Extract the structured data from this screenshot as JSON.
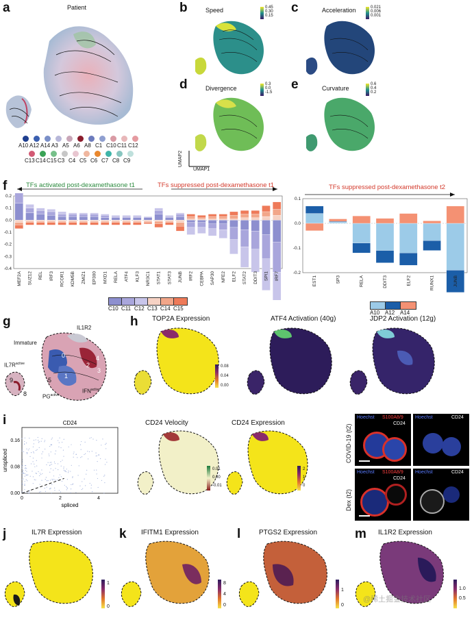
{
  "panels": {
    "a": {
      "label": "a",
      "title": "Patient"
    },
    "b": {
      "label": "b",
      "title": "Speed",
      "cbar": [
        "0.45",
        "0.30",
        "0.15"
      ]
    },
    "c": {
      "label": "c",
      "title": "Acceleration",
      "cbar": [
        "0.021",
        "0.006",
        "0.001"
      ]
    },
    "d": {
      "label": "d",
      "title": "Divergence",
      "cbar": [
        "0.3",
        "0.0",
        "-1.5"
      ]
    },
    "e": {
      "label": "e",
      "title": "Curvature",
      "cbar": [
        "0.6",
        "0.4",
        "0.2"
      ]
    },
    "f": {
      "label": "f"
    },
    "g": {
      "label": "g"
    },
    "h": {
      "label": "h"
    },
    "i": {
      "label": "i"
    },
    "j": {
      "label": "j",
      "title": "IL7R Expression",
      "cbar": [
        "1",
        "0"
      ]
    },
    "k": {
      "label": "k",
      "title": "IFITM1 Expression",
      "cbar": [
        "8",
        "4",
        "0"
      ]
    },
    "l": {
      "label": "l",
      "title": "PTGS2 Expression",
      "cbar": [
        "1",
        "0"
      ]
    },
    "m": {
      "label": "m",
      "title": "IL1R2 Expression",
      "cbar": [
        "1.0",
        "0.5"
      ]
    }
  },
  "umap_axes": {
    "y": "UMAP2",
    "x": "UMAP1"
  },
  "patient_legend": {
    "row1": [
      {
        "name": "A10",
        "color": "#1f3f8f"
      },
      {
        "name": "A12",
        "color": "#3b5fb0"
      },
      {
        "name": "A14",
        "color": "#7a8fc8"
      },
      {
        "name": "A3",
        "color": "#b7b7d9"
      },
      {
        "name": "A5",
        "color": "#c9a6b8"
      },
      {
        "name": "A6",
        "color": "#8b1c2c"
      },
      {
        "name": "A8",
        "color": "#6c7bbd"
      },
      {
        "name": "C1",
        "color": "#8f9fd0"
      },
      {
        "name": "C10",
        "color": "#d99aa4"
      },
      {
        "name": "C11",
        "color": "#e8b7b9"
      },
      {
        "name": "C12",
        "color": "#e59aa0"
      }
    ],
    "row2": [
      {
        "name": "C13",
        "color": "#d25a74"
      },
      {
        "name": "C14",
        "color": "#3aa356"
      },
      {
        "name": "C15",
        "color": "#77c08a"
      },
      {
        "name": "C3",
        "color": "#c7c7c7"
      },
      {
        "name": "C4",
        "color": "#e8c6d0"
      },
      {
        "name": "C5",
        "color": "#f0b79f"
      },
      {
        "name": "C6",
        "color": "#e9882e"
      },
      {
        "name": "C7",
        "color": "#40b5a8"
      },
      {
        "name": "C8",
        "color": "#88c6c0"
      },
      {
        "name": "C9",
        "color": "#bfe0dc"
      }
    ]
  },
  "f_left": {
    "activated_label": "TFs activated post-dexamethasone t1",
    "suppressed_label": "TFs suppressed post-dexamethasone t1",
    "legend": [
      {
        "name": "C10",
        "color": "#8d8fcf"
      },
      {
        "name": "C11",
        "color": "#a9a6dc"
      },
      {
        "name": "C12",
        "color": "#c8c5ea"
      },
      {
        "name": "C13",
        "color": "#f6d2c4"
      },
      {
        "name": "C14",
        "color": "#f2a689"
      },
      {
        "name": "C15",
        "color": "#ee7a59"
      }
    ]
  },
  "f_right": {
    "title": "TFs suppressed post-dexamethasone t2",
    "legend": [
      {
        "name": "A10",
        "color": "#9ccbe8"
      },
      {
        "name": "A12",
        "color": "#1b5ea8"
      },
      {
        "name": "A14",
        "color": "#f49173"
      }
    ]
  },
  "chart_data": [
    {
      "type": "bar",
      "title": "TFs activated / suppressed post-dexamethasone t1",
      "categories": [
        "MEF2A",
        "SUZ12",
        "REL",
        "IRF3",
        "RCOR1",
        "KDM5B",
        "ZMIZ1",
        "EP300",
        "MXD1",
        "RELA",
        "ATF4",
        "KLF3",
        "NR3C1",
        "STAT1",
        "STAT3",
        "JUNB",
        "IRF2",
        "CEBPA",
        "SAP30",
        "NFE2",
        "ELF2",
        "STAT2",
        "DDIT3",
        "SPI1",
        "IRF7"
      ],
      "ylim": [
        -0.4,
        0.2
      ],
      "yticks": [
        "0.2",
        "0.1",
        "0.0",
        "-0.1",
        "-0.2",
        "-0.3",
        "-0.4"
      ],
      "series": [
        {
          "name": "C10",
          "values": [
            0.14,
            0.06,
            0.05,
            0.04,
            0.03,
            0.03,
            0.03,
            0.03,
            0.02,
            0.02,
            0.02,
            0.02,
            0.02,
            0.05,
            0.02,
            0.03,
            -0.02,
            -0.02,
            -0.03,
            -0.03,
            -0.06,
            -0.08,
            -0.09,
            -0.12,
            -0.18
          ]
        },
        {
          "name": "C11",
          "values": [
            0.1,
            0.04,
            0.03,
            0.03,
            0.02,
            0.02,
            0.02,
            0.02,
            0.02,
            0.01,
            0.01,
            0.01,
            0.01,
            0.03,
            0.01,
            0.02,
            -0.04,
            -0.04,
            -0.04,
            -0.05,
            -0.1,
            -0.14,
            -0.15,
            -0.2,
            -0.25
          ]
        },
        {
          "name": "C12",
          "values": [
            0.05,
            0.03,
            0.02,
            0.02,
            0.02,
            0.01,
            0.01,
            0.01,
            0.01,
            0.01,
            0.01,
            0.01,
            0.0,
            0.02,
            0.01,
            0.01,
            -0.06,
            -0.05,
            -0.06,
            -0.07,
            -0.12,
            -0.17,
            -0.19,
            -0.26,
            -0.3
          ]
        },
        {
          "name": "C13",
          "values": [
            -0.02,
            -0.01,
            -0.01,
            -0.01,
            -0.01,
            -0.01,
            -0.01,
            -0.01,
            -0.01,
            -0.01,
            -0.01,
            -0.01,
            -0.01,
            -0.01,
            -0.01,
            -0.02,
            0.01,
            0.01,
            0.01,
            0.01,
            0.01,
            0.02,
            0.02,
            0.03,
            0.04
          ]
        },
        {
          "name": "C14",
          "values": [
            -0.02,
            -0.01,
            -0.01,
            -0.01,
            -0.01,
            -0.01,
            -0.01,
            -0.01,
            -0.01,
            -0.01,
            -0.01,
            -0.01,
            -0.01,
            -0.02,
            -0.01,
            -0.03,
            0.02,
            0.01,
            0.02,
            0.02,
            0.03,
            0.03,
            0.03,
            0.04,
            0.05
          ]
        },
        {
          "name": "C15",
          "values": [
            -0.03,
            -0.02,
            -0.02,
            -0.02,
            -0.02,
            -0.02,
            -0.02,
            -0.02,
            -0.02,
            -0.02,
            -0.02,
            -0.02,
            -0.01,
            -0.03,
            -0.02,
            -0.04,
            0.02,
            0.02,
            0.02,
            0.02,
            0.03,
            0.03,
            0.03,
            0.05,
            0.06
          ]
        }
      ]
    },
    {
      "type": "bar",
      "title": "TFs suppressed post-dexamethasone t2",
      "categories": [
        "EST1",
        "SP3",
        "RELA",
        "DDIT3",
        "ELF2",
        "RUNX1",
        "JUNB"
      ],
      "ylim": [
        -0.2,
        0.1
      ],
      "yticks": [
        "0.1",
        "0.0",
        "-0.1",
        "-0.2"
      ],
      "series": [
        {
          "name": "A10",
          "values": [
            0.04,
            0.005,
            -0.08,
            -0.11,
            -0.12,
            -0.07,
            -0.19
          ]
        },
        {
          "name": "A12",
          "values": [
            0.03,
            0.003,
            -0.04,
            -0.05,
            -0.05,
            -0.04,
            -0.09
          ]
        },
        {
          "name": "A14",
          "values": [
            -0.03,
            0.01,
            0.03,
            0.02,
            0.04,
            0.01,
            0.07
          ]
        }
      ]
    },
    {
      "type": "scatter",
      "title": "CD24",
      "xlabel": "spliced",
      "ylabel": "unspliced",
      "xticks": [
        "0",
        "2",
        "4"
      ],
      "yticks": [
        "0.16",
        "0.08",
        "0.00"
      ],
      "xlim": [
        0,
        5
      ],
      "ylim": [
        0,
        0.2
      ]
    }
  ],
  "g_labels": {
    "immature": "Immature",
    "il1r2": "IL1R2",
    "il7r": "IL7R",
    "il7r_sup": "active",
    "pg": "PG",
    "pg_sup": "active",
    "ifn": "IFN",
    "ifn_sup": "active",
    "clusters": [
      "7",
      "0",
      "1",
      "2",
      "3",
      "4",
      "5",
      "6",
      "8",
      "9"
    ]
  },
  "h_titles": [
    "TOP2A Expression",
    "ATF4 Activation (40g)",
    "JDP2 Activation (12g)"
  ],
  "h_cbar": [
    "0.08",
    "0.04",
    "0.00"
  ],
  "i_titles": [
    "CD24 Velocity",
    "CD24 Expression"
  ],
  "i_velocity_cbar": [
    "0.01",
    "0.00",
    "-0.01"
  ],
  "i_expression_cbar": [
    "2",
    "1",
    "0"
  ],
  "micro": {
    "row1": "COVID-19 (t2)",
    "row2": "Dex (t2)",
    "hoechst": "Hoechst",
    "s100": "S100A8/9",
    "cd24": "CD24"
  },
  "watermark": "@稀土掘金技术社区",
  "colors": {
    "black": "#000000",
    "velocity_arrow": "#111111"
  }
}
